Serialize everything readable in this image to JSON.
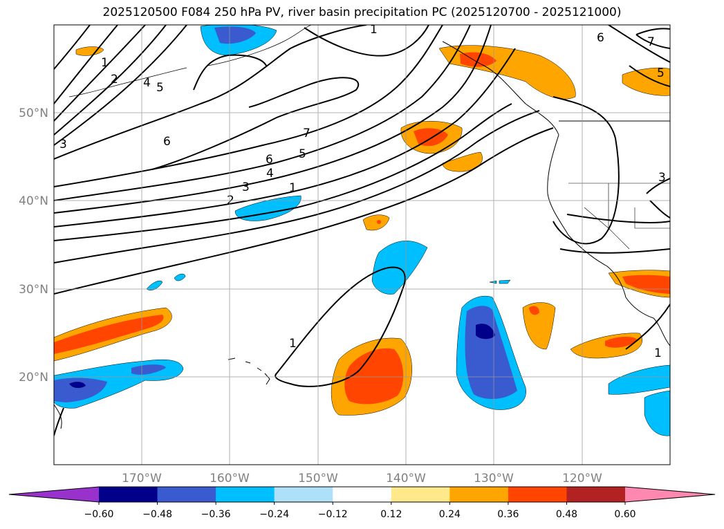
{
  "title": "2025120500 F084 250 hPa PV, river basin precipitation PC (2025120700 - 2025121000)",
  "map": {
    "lat_ticks": [
      "50°N",
      "40°N",
      "30°N",
      "20°N"
    ],
    "lon_ticks": [
      "170°W",
      "160°W",
      "150°W",
      "140°W",
      "130°W",
      "120°W"
    ],
    "grid": true
  },
  "contours": {
    "labels": [
      "1",
      "2",
      "4",
      "5",
      "3",
      "6",
      "7",
      "6",
      "5",
      "4",
      "3",
      "2",
      "1",
      "1",
      "6",
      "7",
      "5",
      "3",
      "1",
      "1"
    ]
  },
  "colorbar": {
    "ticks": [
      "−0.60",
      "−0.48",
      "−0.36",
      "−0.24",
      "−0.12",
      "0.12",
      "0.24",
      "0.36",
      "0.48",
      "0.60"
    ],
    "colors": [
      "#9932cc",
      "#00008b",
      "#3a5bcf",
      "#00bfff",
      "#aee0fa",
      "#ffffff",
      "#ffe98a",
      "#ffa500",
      "#ff4500",
      "#b22222",
      "#ff88b0"
    ],
    "extend": "both"
  }
}
